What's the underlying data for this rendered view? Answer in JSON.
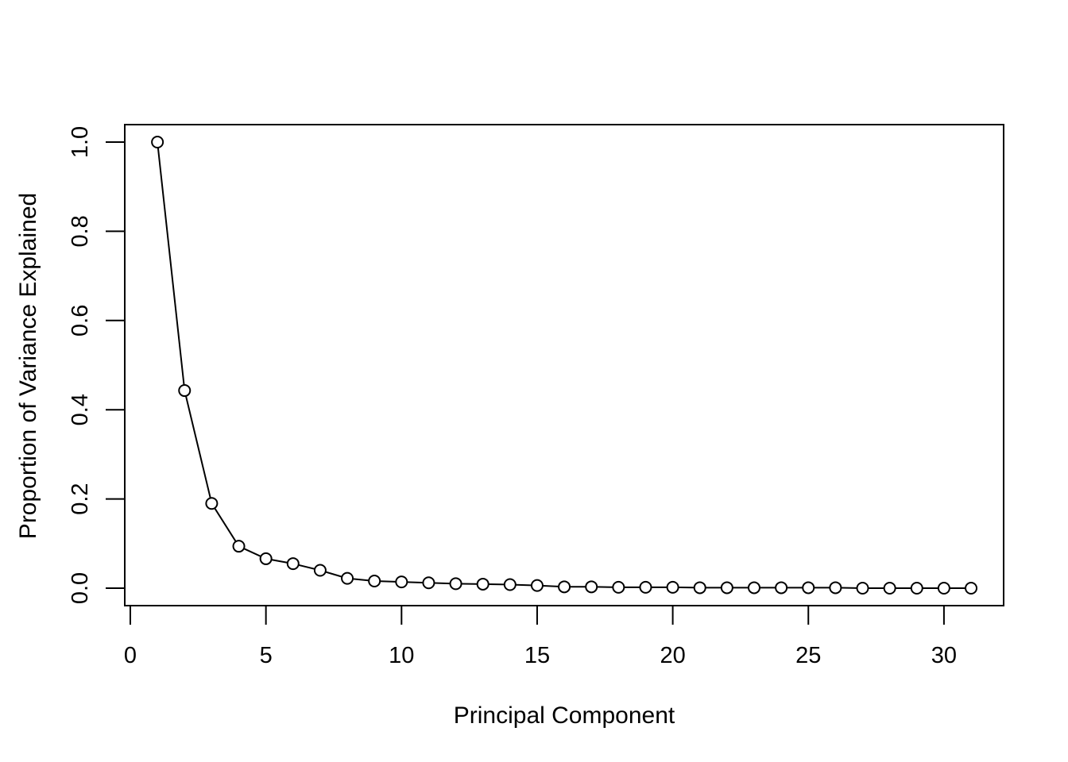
{
  "chart_data": {
    "type": "line",
    "title": "",
    "xlabel": "Principal Component",
    "ylabel": "Proportion of Variance Explained",
    "xlim": [
      0,
      31
    ],
    "ylim": [
      0,
      1
    ],
    "x_ticks": [
      0,
      5,
      10,
      15,
      20,
      25,
      30
    ],
    "y_ticks": [
      "0.0",
      "0.2",
      "0.4",
      "0.6",
      "0.8",
      "1.0"
    ],
    "grid": false,
    "legend": "none",
    "marker": "open-circle",
    "line_color": "#000000",
    "series": [
      {
        "x": [
          1,
          2,
          3,
          4,
          5,
          6,
          7,
          8,
          9,
          10,
          11,
          12,
          13,
          14,
          15,
          16,
          17,
          18,
          19,
          20,
          21,
          22,
          23,
          24,
          25,
          26,
          27,
          28,
          29,
          30,
          31
        ],
        "values": [
          1.0,
          0.443,
          0.19,
          0.094,
          0.066,
          0.055,
          0.04,
          0.022,
          0.016,
          0.014,
          0.012,
          0.01,
          0.009,
          0.008,
          0.006,
          0.003,
          0.003,
          0.002,
          0.002,
          0.002,
          0.001,
          0.001,
          0.001,
          0.001,
          0.001,
          0.001,
          0.0,
          0.0,
          0.0,
          0.0,
          0.0
        ]
      }
    ]
  }
}
